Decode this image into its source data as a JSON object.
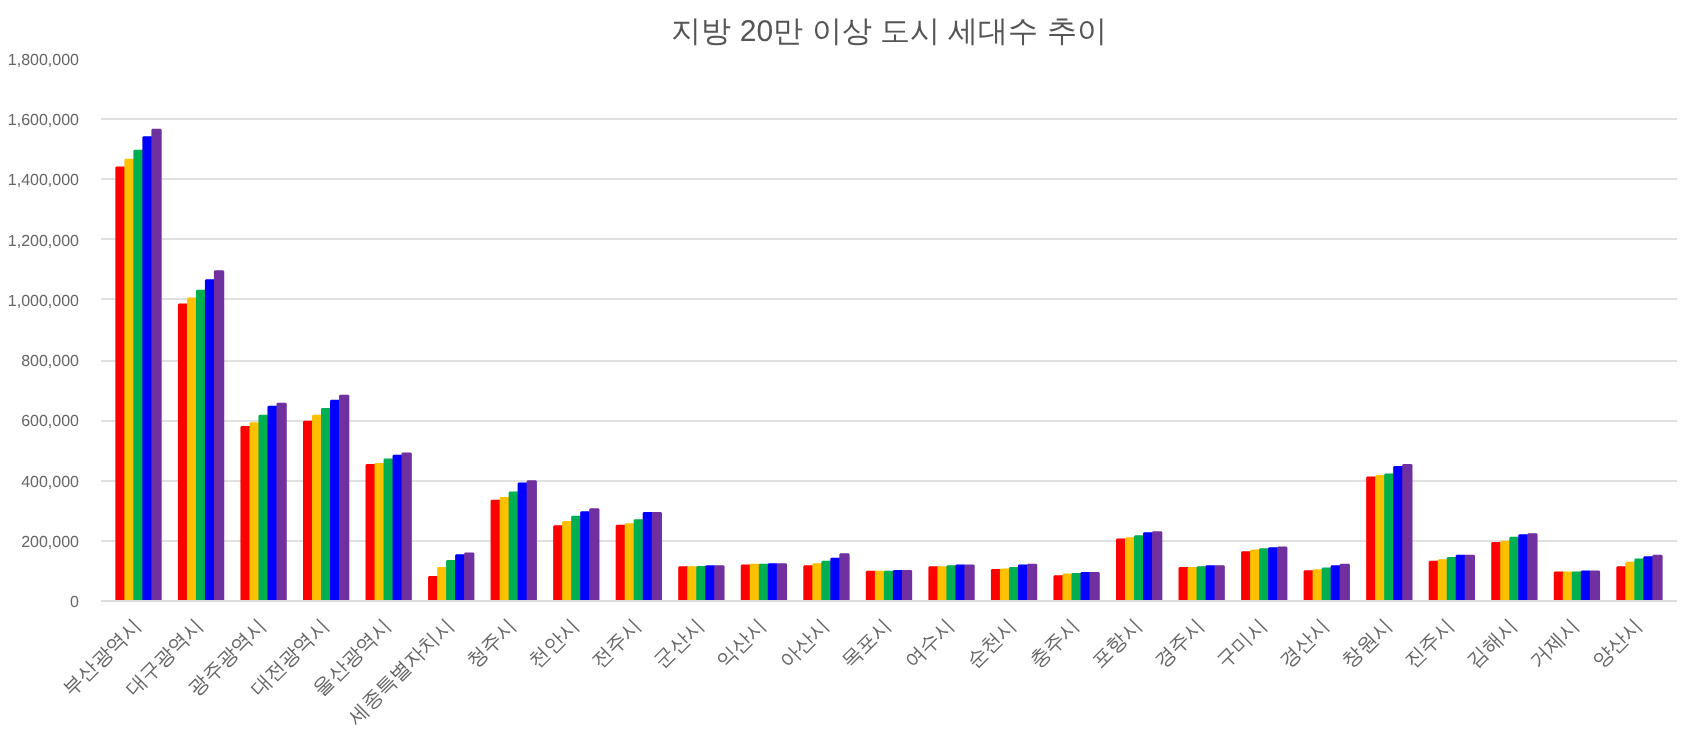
{
  "chart_data": {
    "type": "bar",
    "title": "지방 20만 이상 도시 세대수 추이",
    "categories": [
      "부산광역시",
      "대구광역시",
      "광주광역시",
      "대전광역시",
      "울산광역시",
      "세종특별자치시",
      "청주시",
      "천안시",
      "전주시",
      "군산시",
      "익산시",
      "아산시",
      "목포시",
      "여수시",
      "순천시",
      "충주시",
      "포항시",
      "경주시",
      "구미시",
      "경산시",
      "창원시",
      "진주시",
      "김해시",
      "거제시",
      "양산시"
    ],
    "series": [
      {
        "color": "#ff0000",
        "values": [
          1440000,
          985000,
          578000,
          595000,
          452000,
          80000,
          333000,
          248000,
          250000,
          112000,
          118000,
          115000,
          97000,
          112000,
          103000,
          82000,
          204000,
          110000,
          162000,
          99000,
          410000,
          130000,
          193000,
          95000,
          112000
        ]
      },
      {
        "color": "#ffc000",
        "values": [
          1465000,
          1005000,
          590000,
          615000,
          455000,
          110000,
          342000,
          262000,
          255000,
          112000,
          120000,
          122000,
          97000,
          112000,
          105000,
          88000,
          208000,
          110000,
          168000,
          102000,
          415000,
          135000,
          197000,
          95000,
          127000
        ]
      },
      {
        "color": "#00b050",
        "values": [
          1495000,
          1030000,
          615000,
          638000,
          470000,
          133000,
          360000,
          280000,
          268000,
          113000,
          120000,
          130000,
          97000,
          115000,
          110000,
          90000,
          215000,
          112000,
          172000,
          108000,
          420000,
          143000,
          210000,
          95000,
          138000
        ]
      },
      {
        "color": "#0000ff",
        "values": [
          1540000,
          1065000,
          645000,
          665000,
          482000,
          152000,
          390000,
          295000,
          292000,
          115000,
          122000,
          140000,
          100000,
          118000,
          118000,
          93000,
          225000,
          115000,
          175000,
          115000,
          445000,
          150000,
          218000,
          98000,
          145000
        ]
      },
      {
        "color": "#7030a0",
        "values": [
          1565000,
          1095000,
          655000,
          682000,
          490000,
          158000,
          398000,
          305000,
          292000,
          115000,
          122000,
          155000,
          100000,
          118000,
          120000,
          93000,
          228000,
          115000,
          178000,
          120000,
          452000,
          150000,
          222000,
          98000,
          150000
        ]
      }
    ],
    "ylim": [
      0,
      1800000
    ],
    "yticks": [
      {
        "value": 0,
        "label": "0"
      },
      {
        "value": 200000,
        "label": "200,000"
      },
      {
        "value": 400000,
        "label": "400,000"
      },
      {
        "value": 600000,
        "label": "600,000"
      },
      {
        "value": 800000,
        "label": "800,000"
      },
      {
        "value": 1000000,
        "label": "1,000,000"
      },
      {
        "value": 1200000,
        "label": "1,200,000"
      },
      {
        "value": 1400000,
        "label": "1,400,000"
      },
      {
        "value": 1600000,
        "label": "1,600,000"
      },
      {
        "value": 1800000,
        "label": "1,800,000"
      }
    ],
    "grid": "y"
  }
}
